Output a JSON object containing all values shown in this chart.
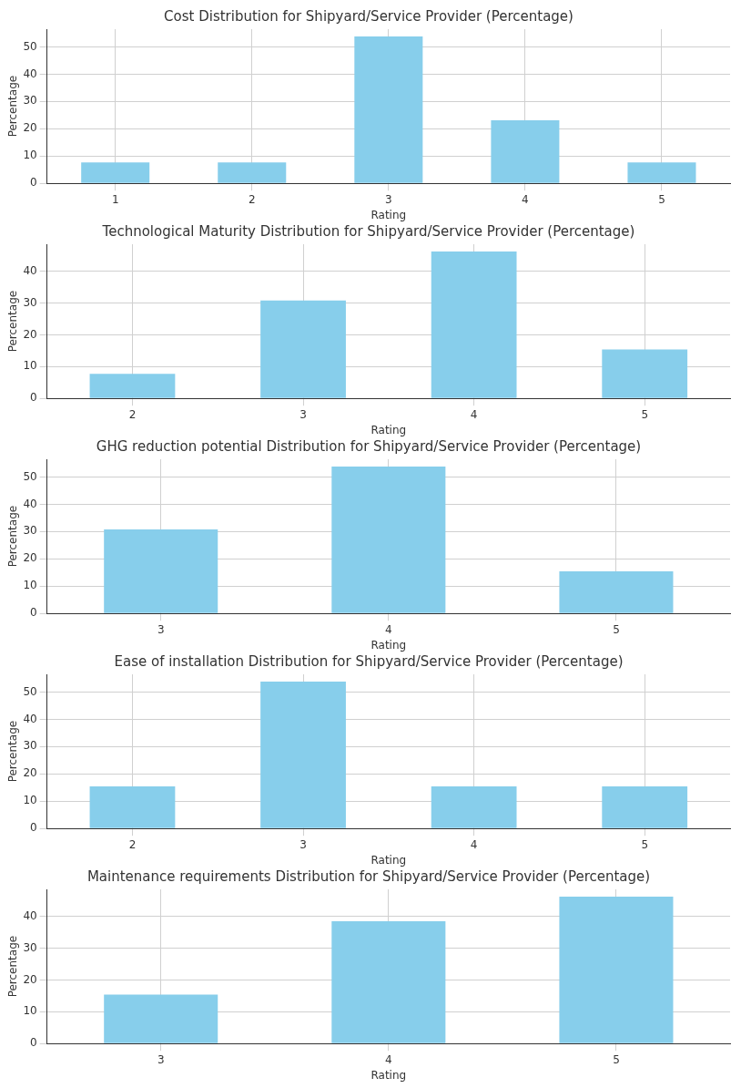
{
  "chart_data": [
    {
      "type": "bar",
      "title": "Cost Distribution for Shipyard/Service Provider (Percentage)",
      "xlabel": "Rating",
      "ylabel": "Percentage",
      "categories": [
        "1",
        "2",
        "3",
        "4",
        "5"
      ],
      "values": [
        7.7,
        7.7,
        53.8,
        23.1,
        7.7
      ],
      "color": "#87ceeb",
      "ylim": [
        0,
        56.5
      ],
      "yticks": [
        0,
        10,
        20,
        30,
        40,
        50
      ],
      "grid": true
    },
    {
      "type": "bar",
      "title": "Technological Maturity Distribution for Shipyard/Service Provider (Percentage)",
      "xlabel": "Rating",
      "ylabel": "Percentage",
      "categories": [
        "2",
        "3",
        "4",
        "5"
      ],
      "values": [
        7.7,
        30.8,
        46.2,
        15.4
      ],
      "color": "#87ceeb",
      "ylim": [
        0,
        48.5
      ],
      "yticks": [
        0,
        10,
        20,
        30,
        40
      ],
      "grid": true
    },
    {
      "type": "bar",
      "title": "GHG reduction potential Distribution for Shipyard/Service Provider (Percentage)",
      "xlabel": "Rating",
      "ylabel": "Percentage",
      "categories": [
        "3",
        "4",
        "5"
      ],
      "values": [
        30.8,
        53.8,
        15.4
      ],
      "color": "#87ceeb",
      "ylim": [
        0,
        56.5
      ],
      "yticks": [
        0,
        10,
        20,
        30,
        40,
        50
      ],
      "grid": true
    },
    {
      "type": "bar",
      "title": "Ease of installation Distribution for Shipyard/Service Provider (Percentage)",
      "xlabel": "Rating",
      "ylabel": "Percentage",
      "categories": [
        "2",
        "3",
        "4",
        "5"
      ],
      "values": [
        15.4,
        53.8,
        15.4,
        15.4
      ],
      "color": "#87ceeb",
      "ylim": [
        0,
        56.5
      ],
      "yticks": [
        0,
        10,
        20,
        30,
        40,
        50
      ],
      "grid": true
    },
    {
      "type": "bar",
      "title": "Maintenance requirements Distribution for Shipyard/Service Provider (Percentage)",
      "xlabel": "Rating",
      "ylabel": "Percentage",
      "categories": [
        "3",
        "4",
        "5"
      ],
      "values": [
        15.4,
        38.5,
        46.2
      ],
      "color": "#87ceeb",
      "ylim": [
        0,
        48.5
      ],
      "yticks": [
        0,
        10,
        20,
        30,
        40
      ],
      "grid": true
    }
  ]
}
